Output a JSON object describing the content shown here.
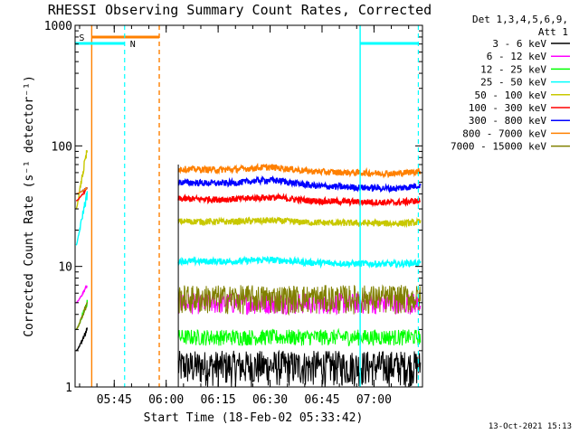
{
  "chart_data": {
    "type": "line",
    "title": "RHESSI Observing Summary Count Rates, Corrected",
    "xlabel": "Start Time (18-Feb-02 05:33:42)",
    "ylabel": "Corrected Count Rate (s⁻¹ detector⁻¹)",
    "yscale": "log",
    "ylim": [
      1,
      1000
    ],
    "xlim": [
      "05:33:42",
      "07:14:00"
    ],
    "x_ticks": [
      "05:45",
      "06:00",
      "06:15",
      "06:30",
      "06:45",
      "07:00"
    ],
    "y_ticks": [
      "1",
      "10",
      "100",
      "1000"
    ],
    "grid": false,
    "legend": {
      "placement": "top-right",
      "header": [
        "Det 1,3,4,5,6,9,",
        "Att 1"
      ]
    },
    "annotations": {
      "flags": [
        {
          "label": "S",
          "color": "#ff8000"
        },
        {
          "label": "N",
          "color": "#00ffff"
        }
      ],
      "timestamp": "13-Oct-2021 15:13"
    },
    "series": [
      {
        "name": "3 - 6 keV",
        "color": "#000000",
        "pre": [
          2,
          3
        ],
        "post": [
          1,
          2
        ]
      },
      {
        "name": "6 - 12 keV",
        "color": "#ff00ff",
        "pre": [
          5,
          7
        ],
        "post": [
          4,
          6
        ]
      },
      {
        "name": "12 - 25 keV",
        "color": "#00ff00",
        "pre": [
          3,
          5
        ],
        "post": [
          2.2,
          3
        ]
      },
      {
        "name": "25 - 50 keV",
        "color": "#00ffff",
        "pre": [
          15,
          40
        ],
        "post": [
          10,
          12
        ]
      },
      {
        "name": "50 - 100 keV",
        "color": "#c8c800",
        "pre": [
          30,
          90
        ],
        "post": [
          22,
          25
        ]
      },
      {
        "name": "100 - 300 keV",
        "color": "#ff0000",
        "pre": [
          35,
          45
        ],
        "post": [
          32,
          40
        ]
      },
      {
        "name": "300 - 800 keV",
        "color": "#0000ff",
        "pre": [
          40,
          45
        ],
        "post": [
          40,
          58
        ]
      },
      {
        "name": "800 - 7000 keV",
        "color": "#ff8000",
        "pre": [
          40,
          45
        ],
        "post": [
          55,
          72
        ]
      },
      {
        "name": "7000 - 15000 keV",
        "color": "#808000",
        "pre": [
          3,
          5
        ],
        "post": [
          4,
          7
        ]
      }
    ]
  }
}
